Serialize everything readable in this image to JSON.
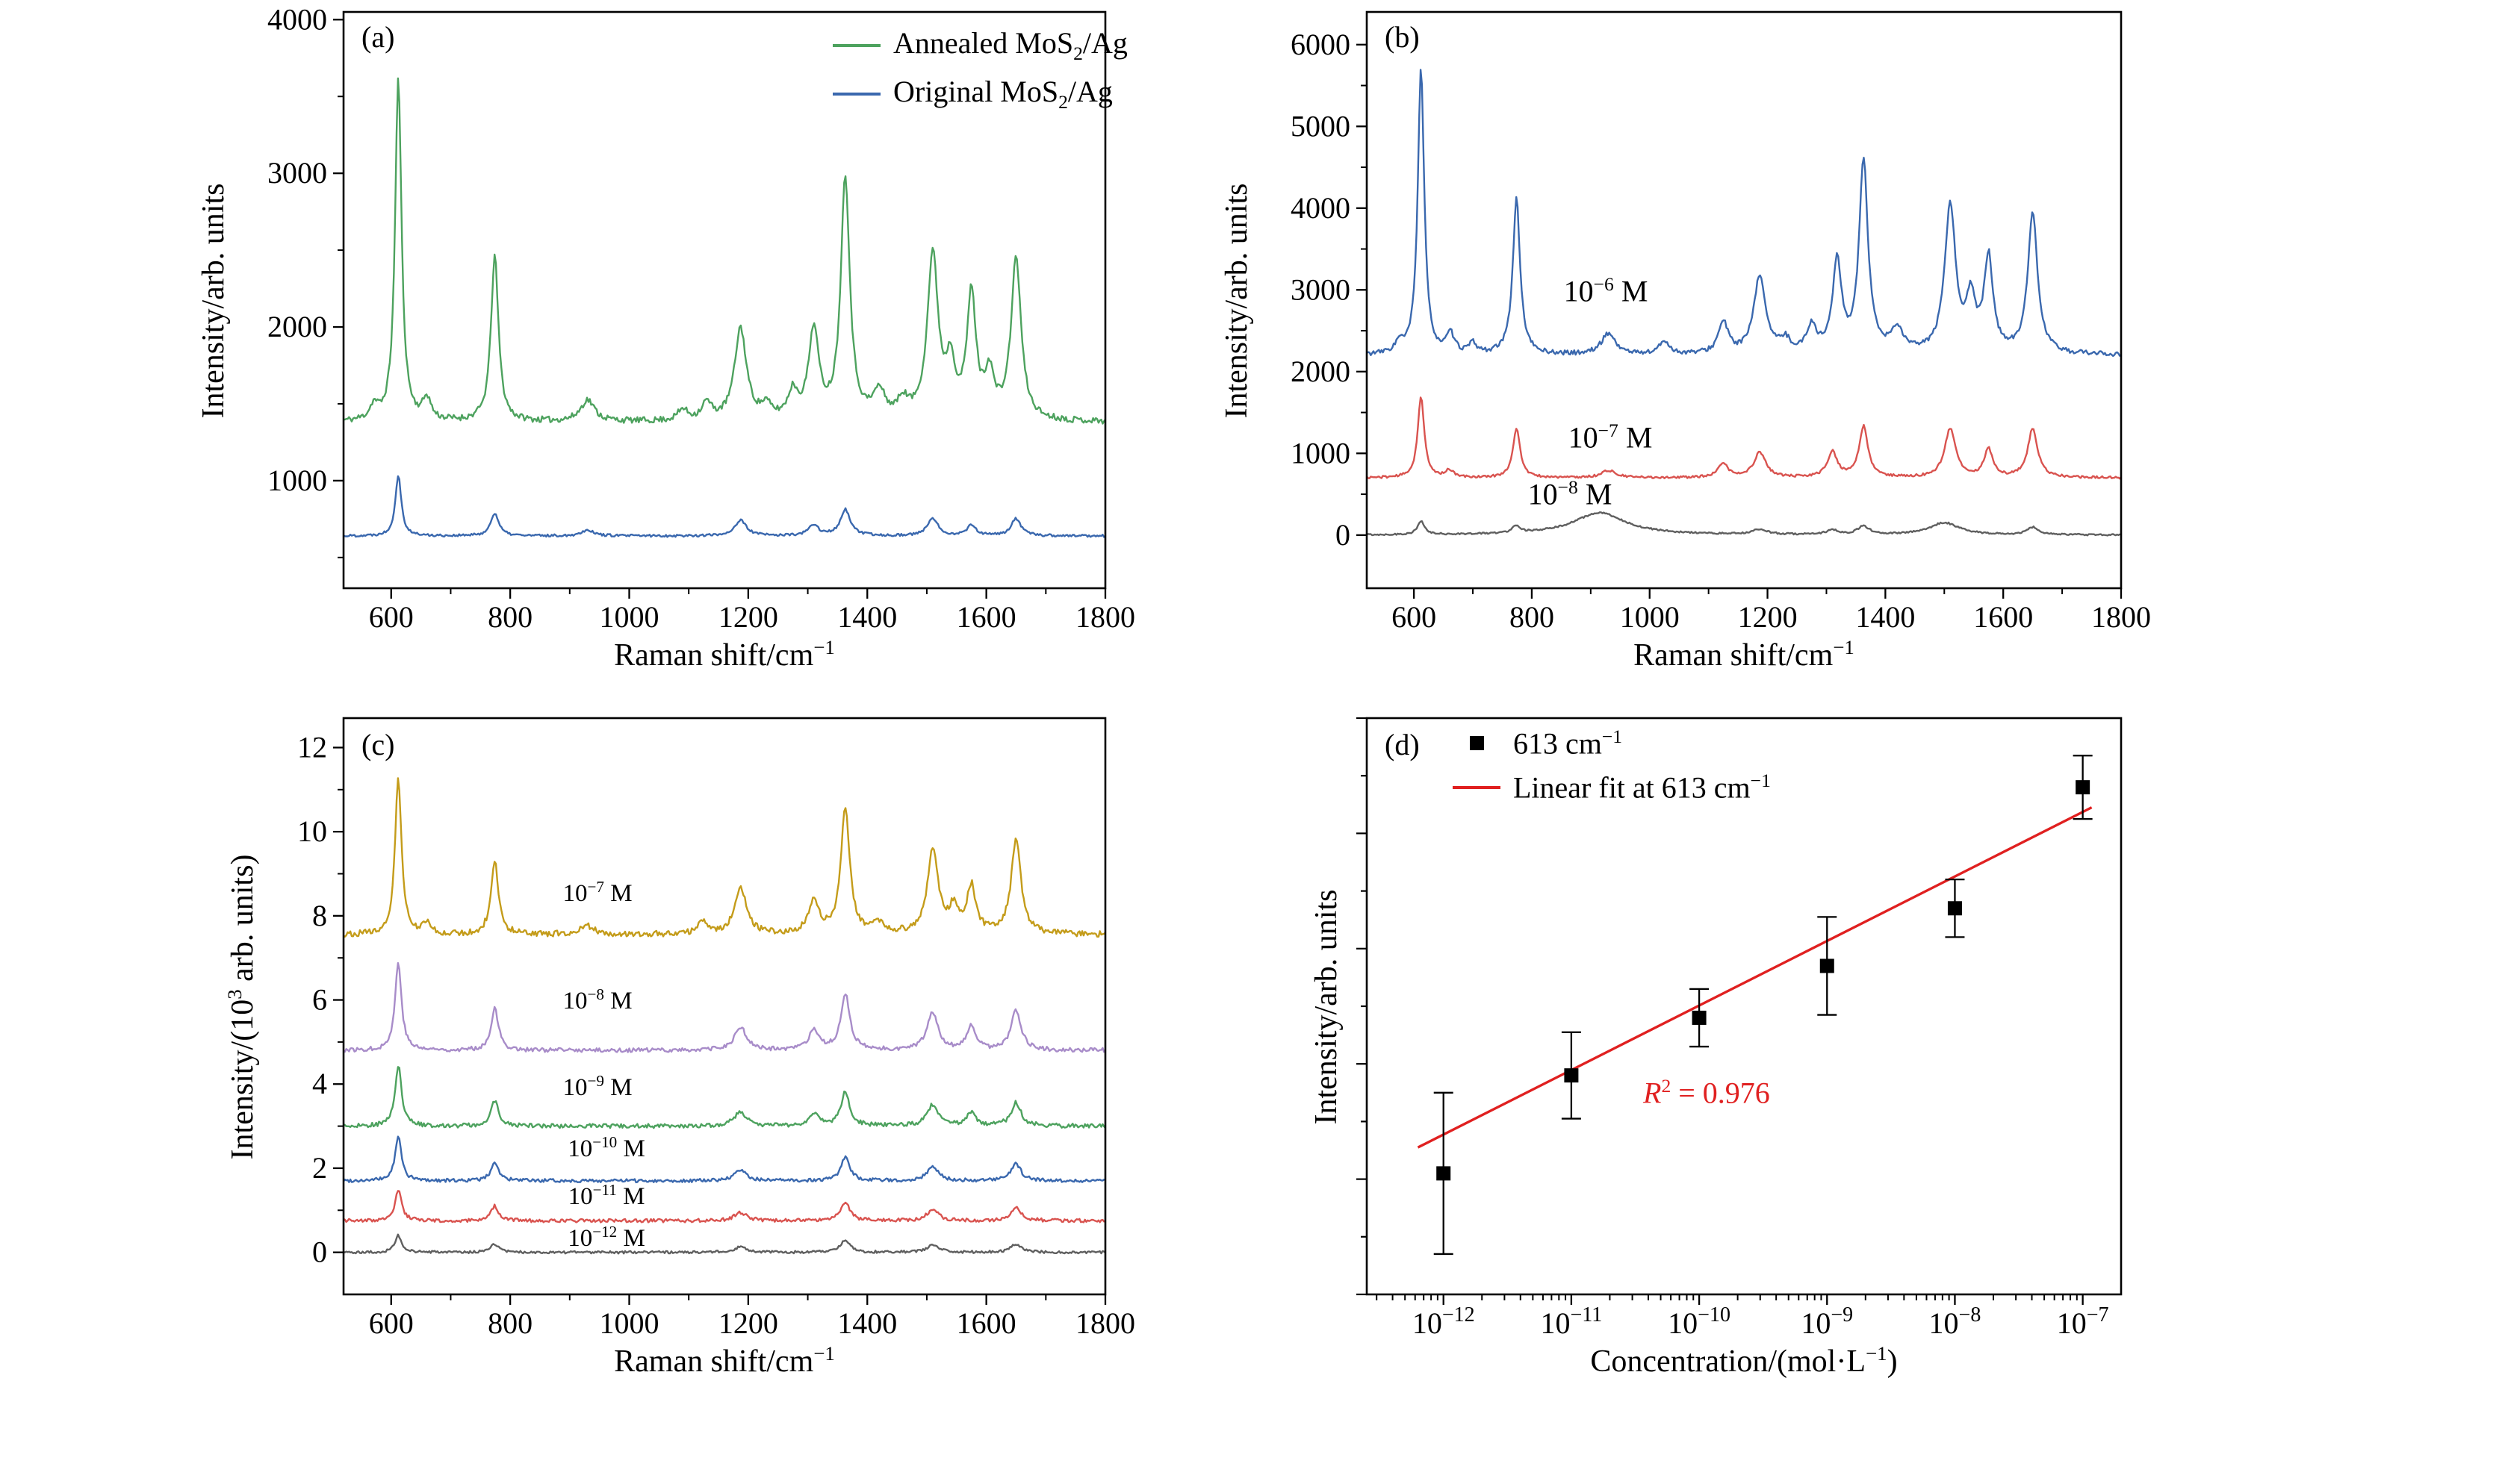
{
  "figure": {
    "background": "#ffffff",
    "panels": {
      "a": {
        "tag": "(a)",
        "ylabel": "Intensity/arb. units",
        "xlabel": {
          "pre": "Raman shift/cm",
          "sup": "−1",
          "post": ""
        },
        "legend": [
          {
            "pre": "Annealed MoS",
            "sub": "2",
            "post": "/Ag",
            "color": "#4da25e"
          },
          {
            "pre": "Original MoS",
            "sub": "2",
            "post": "/Ag",
            "color": "#3a68ae"
          }
        ]
      },
      "b": {
        "tag": "(b)",
        "ylabel": "Intensity/arb. units",
        "xlabel": {
          "pre": "Raman shift/cm",
          "sup": "−1",
          "post": ""
        },
        "inplot": [
          {
            "pre": "10",
            "sup": "−6",
            "post": " M"
          },
          {
            "pre": "10",
            "sup": "−7",
            "post": " M"
          },
          {
            "pre": "10",
            "sup": "−8",
            "post": " M"
          }
        ]
      },
      "c": {
        "tag": "(c)",
        "ylabel": {
          "pre": "Intensity/(10",
          "sup": "3",
          "post": " arb. units)"
        },
        "xlabel": {
          "pre": "Raman shift/cm",
          "sup": "−1",
          "post": ""
        },
        "inplot": [
          {
            "pre": "10",
            "sup": "−7",
            "post": " M"
          },
          {
            "pre": "10",
            "sup": "−8",
            "post": " M"
          },
          {
            "pre": "10",
            "sup": "−9",
            "post": " M"
          },
          {
            "pre": "10",
            "sup": "−10",
            "post": " M"
          },
          {
            "pre": "10",
            "sup": "−11",
            "post": " M"
          },
          {
            "pre": "10",
            "sup": "−12",
            "post": " M"
          }
        ]
      },
      "d": {
        "tag": "(d)",
        "ylabel": "Intensity/arb. units",
        "xlabel": {
          "pre": "Concentration/(mol·L",
          "sup": "−1",
          "post": ")"
        },
        "legend": [
          {
            "marker": "square",
            "color": "#000000",
            "pre": "613 cm",
            "sup": "−1",
            "post": ""
          },
          {
            "marker": "line",
            "color": "#e02020",
            "pre": "Linear fit at 613 cm",
            "sup": "−1",
            "post": ""
          }
        ],
        "annotation": {
          "pre": "R",
          "sup": "2",
          "post": " = 0.976",
          "color": "#e02020"
        }
      }
    }
  },
  "chart_data": [
    {
      "panel": "a",
      "type": "line",
      "title": "",
      "xlabel": "Raman shift/cm^-1",
      "ylabel": "Intensity/arb. units",
      "xlim": [
        520,
        1800
      ],
      "ylim": [
        300,
        4050
      ],
      "xticks": [
        600,
        800,
        1000,
        1200,
        1400,
        1600,
        1800
      ],
      "xminor": [
        700,
        900,
        1100,
        1300,
        1500,
        1700
      ],
      "yticks": [
        1000,
        2000,
        3000,
        4000
      ],
      "yminor": [
        500,
        1500,
        2500,
        3500
      ],
      "grid": false,
      "legend_position": "top-right",
      "series": [
        {
          "name": "Annealed MoS2/Ag",
          "color": "#4da25e",
          "baseline": 1380,
          "noise": 20,
          "seed": 11,
          "peaks": [
            [
              571,
              90,
              8
            ],
            [
              612,
              2230,
              6.5
            ],
            [
              660,
              140,
              8
            ],
            [
              774,
              1080,
              7.5
            ],
            [
              930,
              140,
              14
            ],
            [
              1090,
              70,
              10
            ],
            [
              1130,
              110,
              10
            ],
            [
              1187,
              600,
              12
            ],
            [
              1230,
              80,
              10
            ],
            [
              1275,
              170,
              10
            ],
            [
              1310,
              580,
              10
            ],
            [
              1363,
              1580,
              9
            ],
            [
              1420,
              170,
              12
            ],
            [
              1460,
              110,
              10
            ],
            [
              1510,
              1065,
              11
            ],
            [
              1540,
              330,
              9
            ],
            [
              1575,
              800,
              9
            ],
            [
              1605,
              280,
              9
            ],
            [
              1650,
              1050,
              10
            ]
          ]
        },
        {
          "name": "Original MoS2/Ag",
          "color": "#3a68ae",
          "baseline": 640,
          "noise": 8,
          "seed": 22,
          "peaks": [
            [
              612,
              400,
              6
            ],
            [
              774,
              150,
              8
            ],
            [
              930,
              40,
              12
            ],
            [
              1187,
              100,
              12
            ],
            [
              1310,
              70,
              10
            ],
            [
              1363,
              170,
              10
            ],
            [
              1510,
              110,
              11
            ],
            [
              1575,
              70,
              9
            ],
            [
              1650,
              110,
              10
            ]
          ]
        }
      ]
    },
    {
      "panel": "b",
      "type": "line",
      "title": "",
      "xlabel": "Raman shift/cm^-1",
      "ylabel": "Intensity/arb. units",
      "xlim": [
        520,
        1800
      ],
      "ylim": [
        -650,
        6400
      ],
      "xticks": [
        600,
        800,
        1000,
        1200,
        1400,
        1600,
        1800
      ],
      "xminor": [
        700,
        900,
        1100,
        1300,
        1500,
        1700
      ],
      "yticks": [
        0,
        1000,
        2000,
        3000,
        4000,
        5000,
        6000
      ],
      "yminor": [
        500,
        1500,
        2500,
        3500,
        4500,
        5500
      ],
      "grid": false,
      "series": [
        {
          "name": "10^-6 M",
          "color": "#3a68ae",
          "baseline": 2200,
          "noise": 28,
          "seed": 33,
          "peaks": [
            [
              575,
              120,
              8
            ],
            [
              612,
              3500,
              6.5
            ],
            [
              662,
              230,
              8
            ],
            [
              700,
              120,
              8
            ],
            [
              774,
              1900,
              7.5
            ],
            [
              930,
              260,
              14
            ],
            [
              1025,
              160,
              10
            ],
            [
              1125,
              380,
              10
            ],
            [
              1187,
              950,
              12
            ],
            [
              1230,
              150,
              10
            ],
            [
              1275,
              320,
              10
            ],
            [
              1318,
              1100,
              9
            ],
            [
              1363,
              2350,
              9
            ],
            [
              1420,
              280,
              12
            ],
            [
              1510,
              1800,
              11
            ],
            [
              1545,
              620,
              9
            ],
            [
              1575,
              1150,
              9
            ],
            [
              1650,
              1700,
              10
            ]
          ]
        },
        {
          "name": "10^-7 M",
          "color": "#d9534f",
          "baseline": 700,
          "noise": 14,
          "seed": 44,
          "peaks": [
            [
              612,
              1000,
              6.5
            ],
            [
              660,
              90,
              8
            ],
            [
              774,
              600,
              7.5
            ],
            [
              930,
              90,
              14
            ],
            [
              1125,
              170,
              10
            ],
            [
              1187,
              310,
              12
            ],
            [
              1310,
              310,
              10
            ],
            [
              1363,
              620,
              9
            ],
            [
              1510,
              600,
              11
            ],
            [
              1575,
              340,
              9
            ],
            [
              1650,
              600,
              10
            ]
          ]
        },
        {
          "name": "10^-8 M",
          "color": "#5f5f5f",
          "baseline": 0,
          "noise": 10,
          "seed": 55,
          "peaks": [
            [
              612,
              160,
              7
            ],
            [
              774,
              90,
              8
            ],
            [
              915,
              270,
              55
            ],
            [
              1187,
              60,
              15
            ],
            [
              1310,
              55,
              12
            ],
            [
              1363,
              100,
              12
            ],
            [
              1500,
              150,
              30
            ],
            [
              1650,
              90,
              12
            ]
          ]
        }
      ]
    },
    {
      "panel": "c",
      "type": "line",
      "title": "",
      "xlabel": "Raman shift/cm^-1",
      "ylabel": "Intensity/(10^3 arb. units)",
      "xlim": [
        520,
        1800
      ],
      "ylim": [
        -1.0,
        12.7
      ],
      "xticks": [
        600,
        800,
        1000,
        1200,
        1400,
        1600,
        1800
      ],
      "xminor": [
        700,
        900,
        1100,
        1300,
        1500,
        1700
      ],
      "yticks": [
        0,
        2,
        4,
        6,
        8,
        10,
        12
      ],
      "yminor": [
        1,
        3,
        5,
        7,
        9,
        11
      ],
      "grid": false,
      "series": [
        {
          "name": "10^-7 M",
          "color": "#c49c1a",
          "baseline": 7.55,
          "noise": 0.07,
          "seed": 66,
          "peaks": [
            [
              612,
              3.7,
              6.5
            ],
            [
              660,
              0.25,
              8
            ],
            [
              774,
              1.75,
              7.5
            ],
            [
              930,
              0.2,
              14
            ],
            [
              1125,
              0.3,
              10
            ],
            [
              1187,
              1.1,
              12
            ],
            [
              1310,
              0.8,
              10
            ],
            [
              1363,
              2.95,
              9
            ],
            [
              1420,
              0.25,
              12
            ],
            [
              1510,
              1.95,
              11
            ],
            [
              1545,
              0.55,
              9
            ],
            [
              1575,
              1.1,
              9
            ],
            [
              1650,
              2.2,
              10
            ]
          ]
        },
        {
          "name": "10^-8 M",
          "color": "#a88cc9",
          "baseline": 4.8,
          "noise": 0.05,
          "seed": 77,
          "peaks": [
            [
              612,
              2.1,
              6.5
            ],
            [
              774,
              1.0,
              7.5
            ],
            [
              1187,
              0.55,
              12
            ],
            [
              1310,
              0.45,
              10
            ],
            [
              1363,
              1.35,
              9
            ],
            [
              1510,
              0.9,
              11
            ],
            [
              1575,
              0.55,
              9
            ],
            [
              1650,
              0.95,
              10
            ]
          ]
        },
        {
          "name": "10^-9 M",
          "color": "#4da25e",
          "baseline": 3.0,
          "noise": 0.05,
          "seed": 88,
          "peaks": [
            [
              612,
              1.45,
              6.5
            ],
            [
              774,
              0.6,
              7.5
            ],
            [
              1187,
              0.35,
              12
            ],
            [
              1310,
              0.3,
              10
            ],
            [
              1363,
              0.8,
              9
            ],
            [
              1510,
              0.5,
              11
            ],
            [
              1575,
              0.32,
              9
            ],
            [
              1650,
              0.55,
              10
            ]
          ]
        },
        {
          "name": "10^-10 M",
          "color": "#3a68ae",
          "baseline": 1.7,
          "noise": 0.04,
          "seed": 99,
          "peaks": [
            [
              612,
              1.05,
              6.5
            ],
            [
              774,
              0.45,
              7.5
            ],
            [
              1187,
              0.25,
              12
            ],
            [
              1363,
              0.55,
              9
            ],
            [
              1510,
              0.35,
              11
            ],
            [
              1650,
              0.4,
              10
            ]
          ]
        },
        {
          "name": "10^-11 M",
          "color": "#d9534f",
          "baseline": 0.75,
          "noise": 0.04,
          "seed": 111,
          "peaks": [
            [
              612,
              0.75,
              6.5
            ],
            [
              774,
              0.35,
              7.5
            ],
            [
              1187,
              0.2,
              12
            ],
            [
              1363,
              0.45,
              9
            ],
            [
              1510,
              0.28,
              11
            ],
            [
              1650,
              0.33,
              10
            ]
          ]
        },
        {
          "name": "10^-12 M",
          "color": "#5f5f5f",
          "baseline": 0.0,
          "noise": 0.03,
          "seed": 122,
          "peaks": [
            [
              612,
              0.4,
              6.5
            ],
            [
              774,
              0.2,
              7.5
            ],
            [
              1187,
              0.13,
              12
            ],
            [
              1363,
              0.3,
              9
            ],
            [
              1510,
              0.18,
              11
            ],
            [
              1650,
              0.2,
              10
            ]
          ]
        }
      ]
    },
    {
      "panel": "d",
      "type": "scatter",
      "title": "",
      "xlabel": "Concentration/(mol·L^-1)",
      "ylabel": "Intensity/arb. units",
      "x_scale": "log",
      "xlim": [
        -12.6,
        -6.7
      ],
      "ylim": [
        0,
        10
      ],
      "xtick_base": "10",
      "xtick_exponents": [
        -12,
        -11,
        -10,
        -9,
        -8,
        -7
      ],
      "xtick_sups": [
        "−12",
        "−11",
        "−10",
        "−9",
        "−8",
        "−7"
      ],
      "series_label": "613 cm^-1",
      "fit_label": "Linear fit at 613 cm^-1",
      "marker_color": "#000000",
      "points": {
        "x_exp": [
          -12,
          -11,
          -10,
          -9,
          -8,
          -7
        ],
        "y": [
          2.1,
          3.8,
          4.8,
          5.7,
          6.7,
          8.8
        ],
        "yerr": [
          1.4,
          0.75,
          0.5,
          0.85,
          0.5,
          0.55
        ]
      },
      "fit": {
        "x1": -12.2,
        "y1": 2.55,
        "x2": -6.93,
        "y2": 8.45,
        "color": "#e02020",
        "r2": "0.976"
      }
    }
  ]
}
